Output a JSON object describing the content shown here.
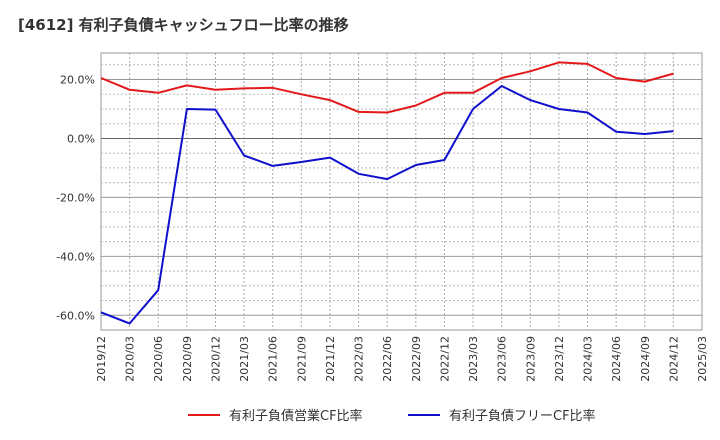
{
  "chart_data": {
    "type": "line",
    "title": "[4612]  有利子負債キャッシュフロー比率の推移",
    "xlabel": "",
    "ylabel": "",
    "ylim": [
      -65,
      29
    ],
    "yticks": [
      20,
      0,
      -20,
      -40,
      -60
    ],
    "ytick_labels": [
      "20.0%",
      "0.0%",
      "-20.0%",
      "-40.0%",
      "-60.0%"
    ],
    "categories": [
      "2019/12",
      "2020/03",
      "2020/06",
      "2020/09",
      "2020/12",
      "2021/03",
      "2021/06",
      "2021/09",
      "2021/12",
      "2022/03",
      "2022/06",
      "2022/09",
      "2022/12",
      "2023/03",
      "2023/06",
      "2023/09",
      "2023/12",
      "2024/03",
      "2024/06",
      "2024/09",
      "2024/12",
      "2025/03"
    ],
    "grid": true,
    "legend_position": "bottom",
    "series": [
      {
        "name": "有利子負債営業CF比率",
        "color": "#e31a1c",
        "values": [
          20.5,
          16.5,
          15.5,
          18.0,
          16.5,
          17.0,
          17.2,
          15.0,
          13.0,
          9.0,
          8.8,
          11.2,
          15.5,
          15.5,
          20.5,
          22.8,
          25.8,
          25.3,
          20.5,
          19.3,
          22.0,
          null
        ]
      },
      {
        "name": "有利子負債フリーCF比率",
        "color": "#1010cc",
        "values": [
          -59.0,
          -62.8,
          -51.5,
          10.0,
          9.8,
          -5.8,
          -9.3,
          -8.0,
          -6.5,
          -12.0,
          -13.8,
          -9.0,
          -7.3,
          10.0,
          17.8,
          13.0,
          10.0,
          8.8,
          2.3,
          1.5,
          2.5,
          null
        ]
      }
    ]
  }
}
